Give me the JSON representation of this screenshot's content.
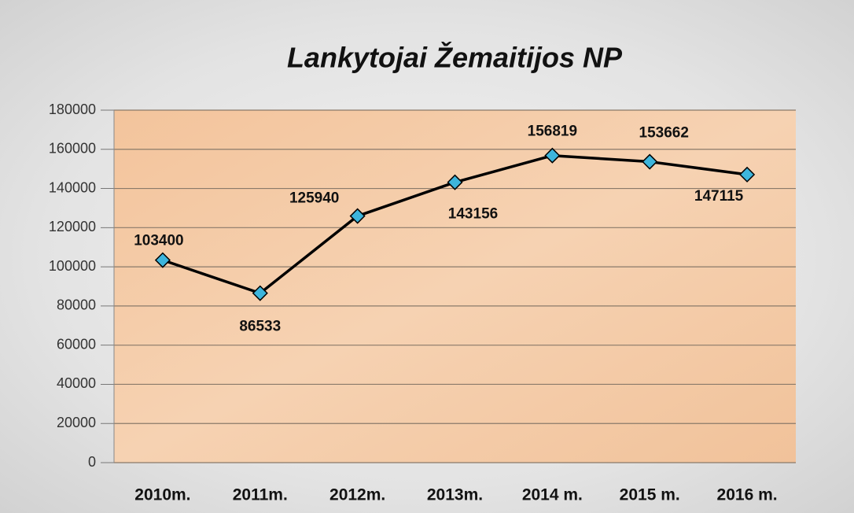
{
  "chart_data": {
    "type": "line",
    "title": "Lankytojai Žemaitijos NP",
    "categories": [
      "2010m.",
      "2011m.",
      "2012m.",
      "2013m.",
      "2014 m.",
      "2015 m.",
      "2016 m."
    ],
    "series": [
      {
        "name": "Lankytojai",
        "color": "#000000",
        "marker_color": "#3db5dc",
        "values": [
          103400,
          86533,
          125940,
          143156,
          156819,
          153662,
          147115
        ]
      }
    ],
    "ylim": [
      0,
      180000
    ],
    "yticks": [
      0,
      20000,
      40000,
      60000,
      80000,
      100000,
      120000,
      140000,
      160000,
      180000
    ],
    "grid": true
  }
}
